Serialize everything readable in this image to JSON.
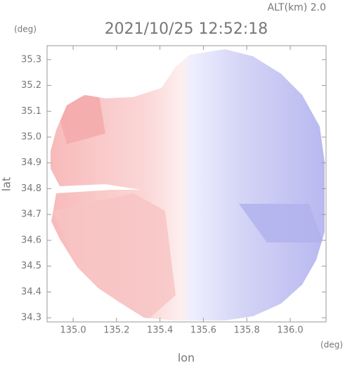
{
  "chart_data": {
    "type": "heatmap",
    "title": "2021/10/25 12:52:18",
    "subtitle": "ALT(km) 2.0",
    "y_unit": "(deg)",
    "x_unit": "(deg)",
    "x_label": "lon",
    "y_label": "lat",
    "xlim": [
      134.88,
      136.165
    ],
    "ylim": [
      34.284,
      35.354
    ],
    "xticks": [
      {
        "value": 135.0,
        "label": "135.0"
      },
      135.2,
      {
        "value": 135.4,
        "label": "135.4"
      },
      135.6,
      135.8,
      {
        "value": 136.0,
        "label": "136.0"
      }
    ],
    "yticks": [
      {
        "value": 34.3,
        "label": "34.3"
      },
      34.4,
      34.5,
      34.6,
      34.7,
      34.8,
      34.9,
      {
        "value": 35.0,
        "label": "35.0"
      },
      35.1,
      35.2,
      35.3
    ]
  }
}
